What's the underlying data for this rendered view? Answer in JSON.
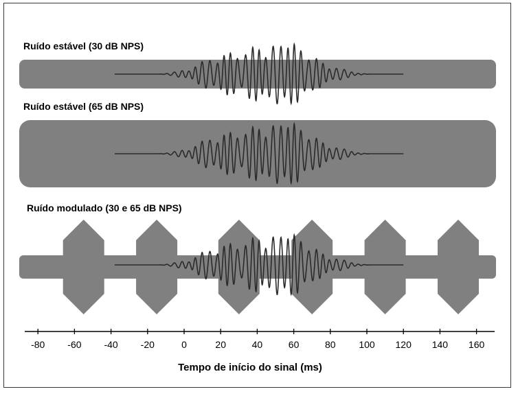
{
  "panels": [
    {
      "title": "Ruído estável (30 dB NPS)"
    },
    {
      "title": "Ruído estável (65 dB NPS)"
    },
    {
      "title": "Ruído modulado (30 e 65 dB NPS)"
    }
  ],
  "axis": {
    "title": "Tempo de início do sinal (ms)",
    "ticks": [
      "-80",
      "-60",
      "-40",
      "-20",
      "0",
      "20",
      "40",
      "60",
      "80",
      "100",
      "120",
      "140",
      "160"
    ],
    "tick_values": [
      -80,
      -60,
      -40,
      -20,
      0,
      20,
      40,
      60,
      80,
      100,
      120,
      140,
      160
    ],
    "range": [
      -90,
      170
    ]
  },
  "signal": {
    "start_ms": -38,
    "end_ms": 120
  },
  "colors": {
    "noise": "#808080",
    "signal": "#2a2a2a",
    "frame": "#3a3a3a"
  }
}
